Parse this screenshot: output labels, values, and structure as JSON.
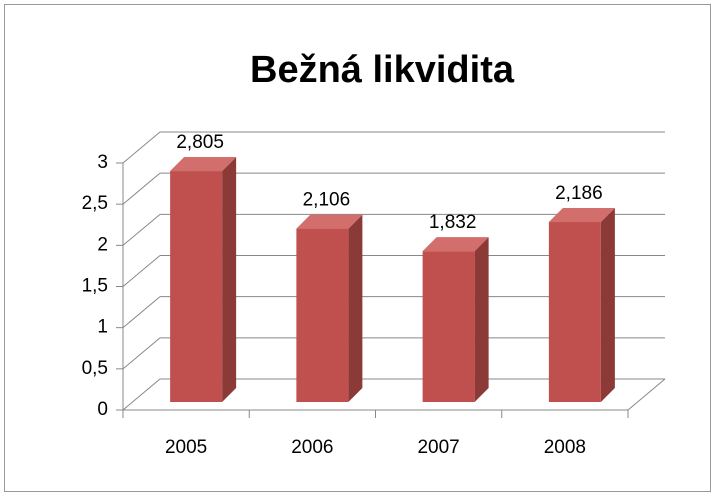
{
  "chart_data": {
    "type": "bar3d",
    "title": "Bežná likvidita",
    "categories": [
      "2005",
      "2006",
      "2007",
      "2008"
    ],
    "values": [
      2.805,
      2.106,
      1.832,
      2.186
    ],
    "value_labels": [
      "2,805",
      "2,106",
      "1,832",
      "2,186"
    ],
    "color": "#c0504d",
    "ylim": [
      0,
      3
    ],
    "yticks": [
      0,
      {
        "value": 0.5,
        "label": "0,5"
      },
      1,
      {
        "value": 1.5,
        "label": "1,5"
      },
      2,
      {
        "value": 2.5,
        "label": "2,5"
      },
      3
    ],
    "grid": true
  }
}
